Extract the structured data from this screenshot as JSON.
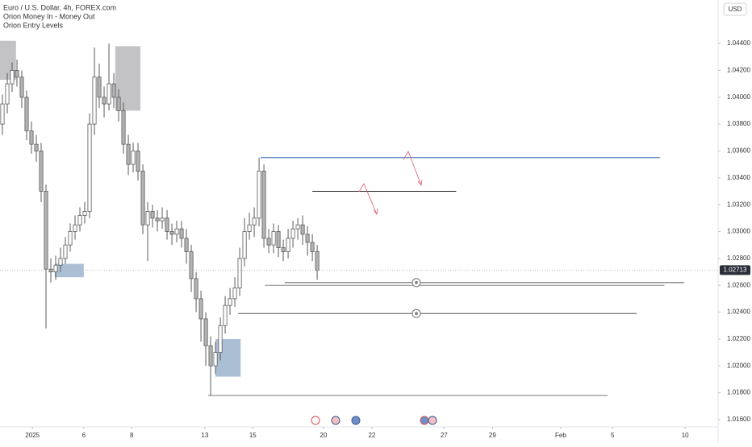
{
  "chart_data": {
    "type": "candlestick",
    "title": "Euro / U.S. Dollar, 4h, FOREX.com",
    "indicators": [
      "Orion Money In - Money Out",
      "Orion Entry Levels"
    ],
    "currency": "USD",
    "xlim": [
      0,
      148.3
    ],
    "ylim": [
      1.01546,
      1.04724
    ],
    "xticks": [
      {
        "value": 6.7,
        "label": "2025"
      },
      {
        "value": 17.3,
        "label": "6"
      },
      {
        "value": 27.2,
        "label": "8"
      },
      {
        "value": 42.3,
        "label": "13"
      },
      {
        "value": 52.2,
        "label": "15"
      },
      {
        "value": 66.8,
        "label": "20"
      },
      {
        "value": 76.8,
        "label": "22"
      },
      {
        "value": 91.7,
        "label": "27"
      },
      {
        "value": 101.7,
        "label": "29"
      },
      {
        "value": 115.8,
        "label": "Feb"
      },
      {
        "value": 126.5,
        "label": "5"
      },
      {
        "value": 141.5,
        "label": "10"
      }
    ],
    "yticks": [
      {
        "value": 1.016,
        "label": "1.01600"
      },
      {
        "value": 1.018,
        "label": "1.01800"
      },
      {
        "value": 1.02,
        "label": "1.02000"
      },
      {
        "value": 1.022,
        "label": "1.02200"
      },
      {
        "value": 1.024,
        "label": "1.02400"
      },
      {
        "value": 1.026,
        "label": "1.02600"
      },
      {
        "value": 1.028,
        "label": "1.02800"
      },
      {
        "value": 1.03,
        "label": "1.03000"
      },
      {
        "value": 1.032,
        "label": "1.03200"
      },
      {
        "value": 1.034,
        "label": "1.03400"
      },
      {
        "value": 1.036,
        "label": "1.03600"
      },
      {
        "value": 1.038,
        "label": "1.03800"
      },
      {
        "value": 1.04,
        "label": "1.04000"
      },
      {
        "value": 1.042,
        "label": "1.04200"
      },
      {
        "value": 1.044,
        "label": "1.04400"
      }
    ],
    "up_color": "#ffffff",
    "down_color": "#b4b4b4",
    "wick_color": "#5a5a5a",
    "open": [
      1.038,
      1.0395,
      1.041,
      1.042,
      1.0415,
      1.04,
      1.0375,
      1.0365,
      1.036,
      1.033,
      1.0272,
      1.027,
      1.0275,
      1.028,
      1.029,
      1.03,
      1.0305,
      1.0312,
      1.0315,
      1.038,
      1.0415,
      1.04,
      1.0395,
      1.041,
      1.04,
      1.039,
      1.0365,
      1.035,
      1.036,
      1.0345,
      1.0305,
      1.0315,
      1.031,
      1.0308,
      1.031,
      1.03,
      1.0298,
      1.0302,
      1.0295,
      1.0285,
      1.0265,
      1.025,
      1.0235,
      1.0215,
      1.02,
      1.021,
      1.023,
      1.0245,
      1.025,
      1.0258,
      1.028,
      1.03,
      1.0305,
      1.031,
      1.0345,
      1.0295,
      1.029,
      1.03,
      1.0288,
      1.0285,
      1.0295,
      1.0302,
      1.0305,
      1.0298,
      1.0292,
      1.0285
    ],
    "high": [
      1.0402,
      1.0418,
      1.0426,
      1.0428,
      1.042,
      1.0405,
      1.0382,
      1.0372,
      1.0366,
      1.0335,
      1.028,
      1.0282,
      1.0288,
      1.0296,
      1.0306,
      1.0312,
      1.0318,
      1.0322,
      1.0388,
      1.0437,
      1.0425,
      1.0408,
      1.044,
      1.0418,
      1.0406,
      1.0396,
      1.0372,
      1.0366,
      1.0366,
      1.035,
      1.0322,
      1.032,
      1.0316,
      1.0318,
      1.0316,
      1.0306,
      1.0308,
      1.0308,
      1.0302,
      1.029,
      1.027,
      1.0256,
      1.024,
      1.0222,
      1.0218,
      1.0236,
      1.0252,
      1.0258,
      1.0266,
      1.0288,
      1.031,
      1.0314,
      1.0318,
      1.0355,
      1.035,
      1.0302,
      1.0306,
      1.0305,
      1.0294,
      1.0302,
      1.0308,
      1.031,
      1.0312,
      1.0304,
      1.0298,
      1.029
    ],
    "low": [
      1.0372,
      1.0388,
      1.0404,
      1.0408,
      1.0392,
      1.0368,
      1.0358,
      1.0352,
      1.0322,
      1.0228,
      1.0262,
      1.0264,
      1.027,
      1.0276,
      1.0285,
      1.0294,
      1.03,
      1.0306,
      1.031,
      1.0372,
      1.0392,
      1.0385,
      1.039,
      1.0392,
      1.0382,
      1.0358,
      1.0342,
      1.0344,
      1.0338,
      1.0298,
      1.0278,
      1.0303,
      1.03,
      1.0302,
      1.0294,
      1.029,
      1.0292,
      1.0288,
      1.0276,
      1.0255,
      1.024,
      1.0218,
      1.02,
      1.0178,
      1.0194,
      1.0204,
      1.0224,
      1.0238,
      1.0244,
      1.0252,
      1.0274,
      1.0294,
      1.0296,
      1.0304,
      1.0288,
      1.0284,
      1.0284,
      1.0281,
      1.0278,
      1.028,
      1.0288,
      1.0294,
      1.029,
      1.0282,
      1.0278,
      1.0264
    ],
    "close": [
      1.0395,
      1.041,
      1.042,
      1.0415,
      1.04,
      1.0375,
      1.0365,
      1.036,
      1.033,
      1.0272,
      1.027,
      1.0275,
      1.028,
      1.029,
      1.03,
      1.0305,
      1.0312,
      1.0315,
      1.038,
      1.0415,
      1.04,
      1.0395,
      1.041,
      1.04,
      1.039,
      1.0365,
      1.035,
      1.036,
      1.0345,
      1.0305,
      1.0315,
      1.031,
      1.0308,
      1.031,
      1.03,
      1.0298,
      1.0302,
      1.0295,
      1.0285,
      1.0265,
      1.025,
      1.0235,
      1.0215,
      1.02,
      1.021,
      1.023,
      1.0245,
      1.025,
      1.0258,
      1.028,
      1.03,
      1.0305,
      1.031,
      1.0345,
      1.0295,
      1.029,
      1.03,
      1.0288,
      1.0285,
      1.0295,
      1.0302,
      1.0305,
      1.0298,
      1.0292,
      1.0285,
      1.02713
    ],
    "levels": [
      {
        "price": 1.0355,
        "start": 53.8,
        "end": 136.3,
        "color": "#3f6fa8"
      },
      {
        "price": 1.033,
        "start": 64.5,
        "end": 94.2,
        "color": "#222222"
      },
      {
        "price": 1.0262,
        "start": 58.8,
        "end": 141.3,
        "color": "#555555"
      },
      {
        "price": 1.026,
        "start": 54.7,
        "end": 137.2,
        "color": "#888888"
      },
      {
        "price": 1.0239,
        "start": 49.2,
        "end": 131.5,
        "color": "#555555"
      },
      {
        "price": 1.0178,
        "start": 43.0,
        "end": 125.5,
        "color": "#777777"
      }
    ],
    "zones": [
      {
        "start": 0,
        "end": 3.3,
        "top": 1.0442,
        "bottom": 1.0413,
        "color": "#b8b8bc"
      },
      {
        "start": 23.8,
        "end": 29.0,
        "top": 1.0438,
        "bottom": 1.039,
        "color": "#b8b8bc"
      },
      {
        "start": 11.3,
        "end": 17.3,
        "top": 1.0276,
        "bottom": 1.0266,
        "color": "#9cb4cc"
      },
      {
        "start": 44.5,
        "end": 49.7,
        "top": 1.022,
        "bottom": 1.0192,
        "color": "#9cb4cc"
      }
    ]
  }
}
